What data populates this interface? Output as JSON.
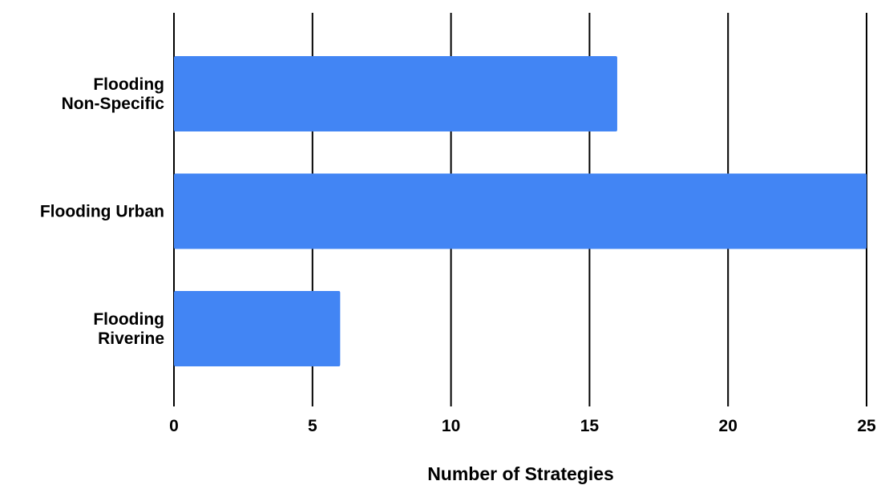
{
  "chart_data": {
    "type": "bar",
    "orientation": "horizontal",
    "categories": [
      "Flooding Non-Specific",
      "Flooding Urban",
      "Flooding Riverine"
    ],
    "category_label_lines": [
      [
        "Flooding",
        "Non-Specific"
      ],
      [
        "Flooding Urban"
      ],
      [
        "Flooding",
        "Riverine"
      ]
    ],
    "values": [
      16,
      25,
      6
    ],
    "xlabel": "Number of Strategies",
    "ylabel": "",
    "xlim": [
      0,
      25
    ],
    "xticks": [
      0,
      5,
      10,
      15,
      20,
      25
    ],
    "grid": "vertical",
    "legend": "none",
    "bar_color": "#4285f4"
  }
}
